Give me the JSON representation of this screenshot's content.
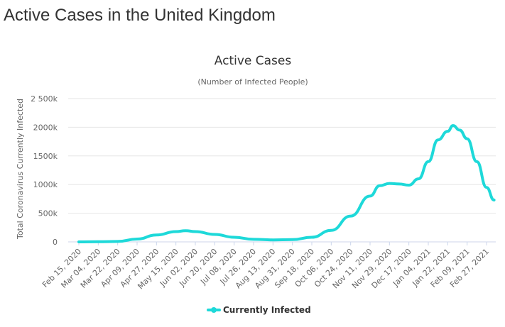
{
  "page": {
    "heading": "Active Cases in the United Kingdom"
  },
  "chart_data": {
    "type": "line",
    "title": "Active Cases",
    "subtitle": "(Number of Infected People)",
    "ylabel": "Total Coronavirus Currently Infected",
    "xlabel": "",
    "ylim": [
      0,
      2500000
    ],
    "yticks": [
      0,
      500000,
      1000000,
      1500000,
      2000000,
      2500000
    ],
    "ytick_labels": [
      "0",
      "500k",
      "1000k",
      "1500k",
      "2000k",
      "2 500k"
    ],
    "xtick_labels": [
      "Feb 15, 2020",
      "Mar 04, 2020",
      "Mar 22, 2020",
      "Apr 09, 2020",
      "Apr 27, 2020",
      "May 15, 2020",
      "Jun 02, 2020",
      "Jun 20, 2020",
      "Jul 08, 2020",
      "Jul 26, 2020",
      "Aug 13, 2020",
      "Aug 31, 2020",
      "Sep 18, 2020",
      "Oct 06, 2020",
      "Oct 24, 2020",
      "Nov 11, 2020",
      "Nov 29, 2020",
      "Dec 17, 2020",
      "Jan 04, 2021",
      "Jan 22, 2021",
      "Feb 09, 2021",
      "Feb 27, 2021"
    ],
    "grid": true,
    "legend_position": "bottom-center",
    "series": [
      {
        "name": "Currently Infected",
        "color": "#1ed9d9",
        "points": [
          [
            "Feb 15, 2020",
            0
          ],
          [
            "Mar 04, 2020",
            2000
          ],
          [
            "Mar 22, 2020",
            8000
          ],
          [
            "Apr 09, 2020",
            50000
          ],
          [
            "Apr 27, 2020",
            120000
          ],
          [
            "May 15, 2020",
            180000
          ],
          [
            "May 24, 2020",
            195000
          ],
          [
            "Jun 02, 2020",
            180000
          ],
          [
            "Jun 20, 2020",
            130000
          ],
          [
            "Jul 08, 2020",
            80000
          ],
          [
            "Jul 26, 2020",
            45000
          ],
          [
            "Aug 13, 2020",
            35000
          ],
          [
            "Aug 31, 2020",
            40000
          ],
          [
            "Sep 18, 2020",
            80000
          ],
          [
            "Oct 06, 2020",
            200000
          ],
          [
            "Oct 24, 2020",
            450000
          ],
          [
            "Nov 11, 2020",
            800000
          ],
          [
            "Nov 20, 2020",
            980000
          ],
          [
            "Nov 29, 2020",
            1020000
          ],
          [
            "Dec 08, 2020",
            1010000
          ],
          [
            "Dec 17, 2020",
            990000
          ],
          [
            "Dec 26, 2020",
            1100000
          ],
          [
            "Jan 04, 2021",
            1400000
          ],
          [
            "Jan 13, 2021",
            1780000
          ],
          [
            "Jan 22, 2021",
            1930000
          ],
          [
            "Jan 27, 2021",
            2030000
          ],
          [
            "Feb 02, 2021",
            1950000
          ],
          [
            "Feb 09, 2021",
            1800000
          ],
          [
            "Feb 18, 2021",
            1400000
          ],
          [
            "Feb 27, 2021",
            950000
          ],
          [
            "Mar 06, 2021",
            730000
          ]
        ]
      }
    ]
  }
}
